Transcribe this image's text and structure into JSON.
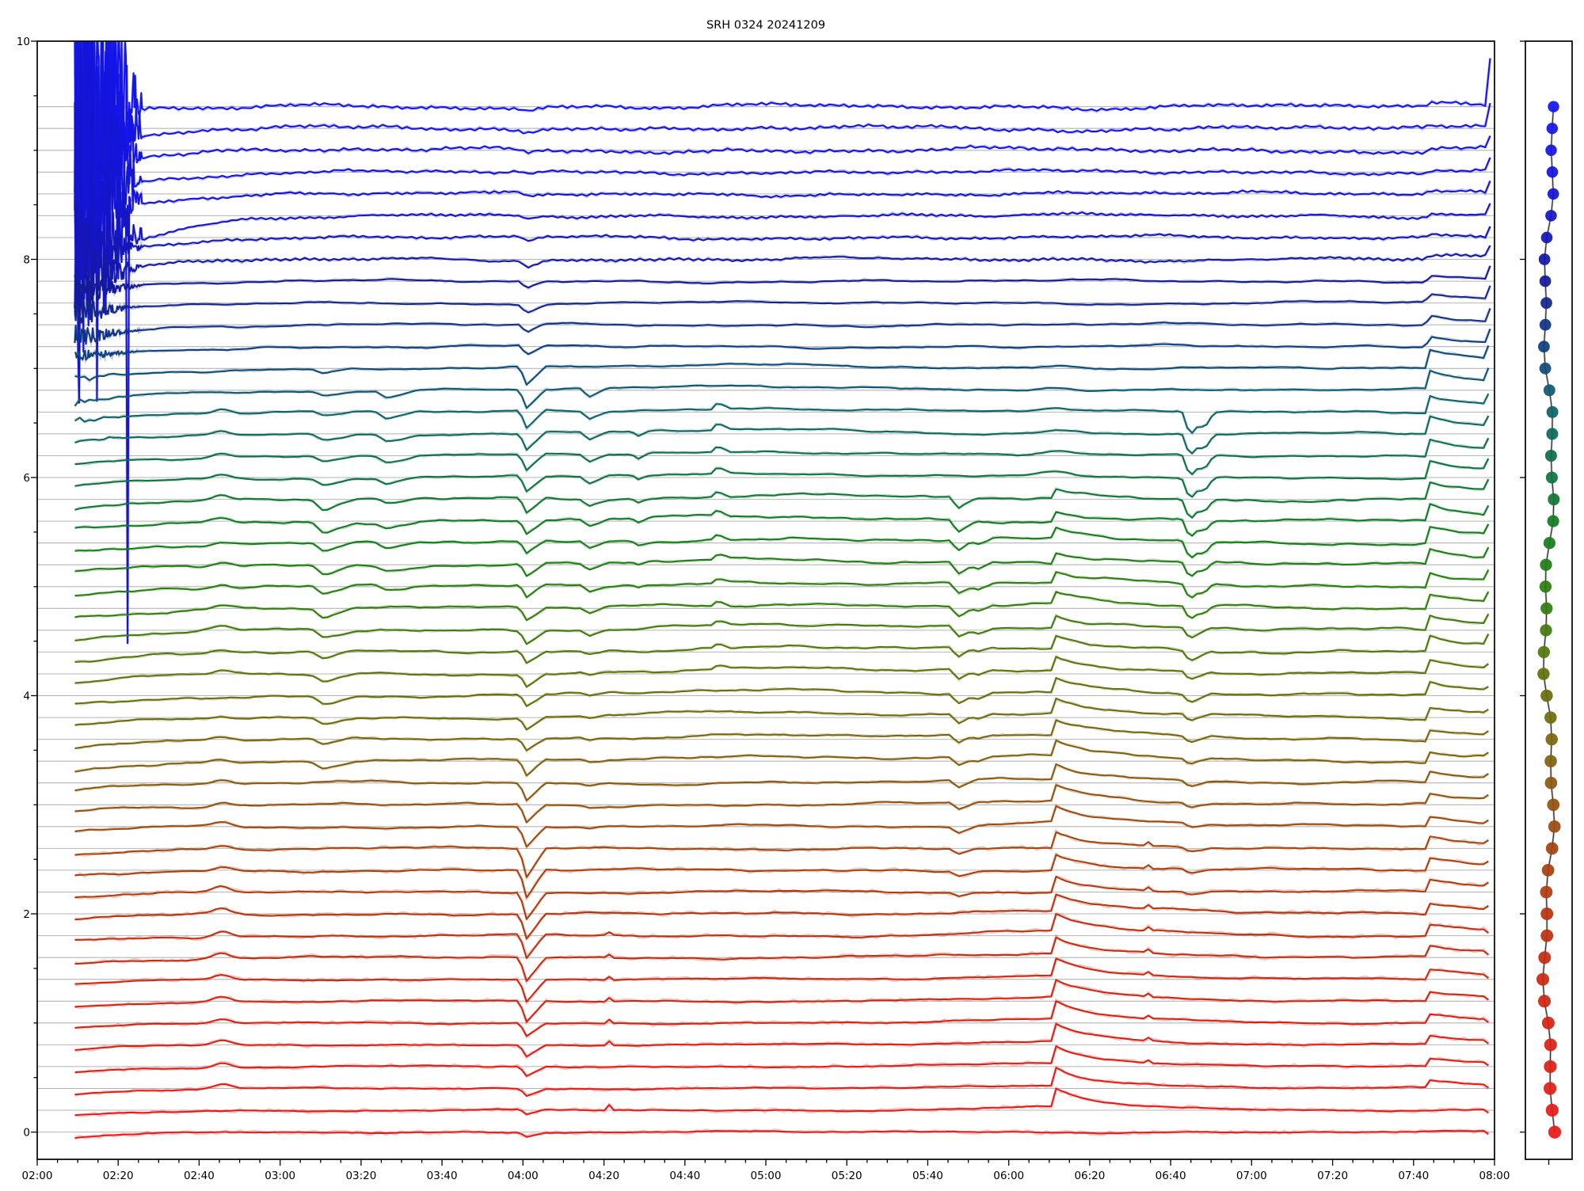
{
  "chart_data": {
    "type": "multitrace-line",
    "title": "SRH 0324 20241209",
    "x_axis": {
      "start": "02:00",
      "end": "08:00",
      "tick_labels": [
        "02:00",
        "02:20",
        "02:40",
        "03:00",
        "03:20",
        "03:40",
        "04:00",
        "04:20",
        "04:40",
        "05:00",
        "05:20",
        "05:40",
        "06:00",
        "06:20",
        "06:40",
        "07:00",
        "07:20",
        "07:40",
        "08:00"
      ],
      "major_tick_minutes": 20,
      "minor_tick_minutes": 5,
      "data_start": "02:09",
      "data_end": "07:59"
    },
    "y_axis": {
      "tick_labels": [
        "0",
        "2",
        "4",
        "6",
        "8",
        "10"
      ],
      "tick_values": [
        0,
        2,
        4,
        6,
        8,
        10
      ],
      "minor_step": 0.5,
      "lim": [
        -0.25,
        10
      ]
    },
    "traces": {
      "count": 48,
      "top_baseline": 9.4,
      "spacing": 0.2,
      "baselines": [
        9.4,
        9.2,
        9.0,
        8.8,
        8.6,
        8.4,
        8.2,
        8.0,
        7.8,
        7.6,
        7.4,
        7.2,
        7.0,
        6.8,
        6.6,
        6.4,
        6.2,
        6.0,
        5.8,
        5.6,
        5.4,
        5.2,
        5.0,
        4.8,
        4.6,
        4.4,
        4.2,
        4.0,
        3.8,
        3.6,
        3.4,
        3.2,
        3.0,
        2.8,
        2.6,
        2.4,
        2.2,
        2.0,
        1.8,
        1.6,
        1.4,
        1.2,
        1.0,
        0.8,
        0.6,
        0.4,
        0.2,
        0.0
      ],
      "t0": 0.155,
      "t1": 5.99
    },
    "color_stops": [
      [
        0.0,
        "#1414F0"
      ],
      [
        0.09,
        "#1414D2"
      ],
      [
        0.17,
        "#141996"
      ],
      [
        0.235,
        "#10407E"
      ],
      [
        0.3,
        "#0E6468"
      ],
      [
        0.36,
        "#0F7341"
      ],
      [
        0.42,
        "#147D1B"
      ],
      [
        0.48,
        "#2F7D0F"
      ],
      [
        0.55,
        "#5F730E"
      ],
      [
        0.63,
        "#7D640E"
      ],
      [
        0.7,
        "#9B4B10"
      ],
      [
        0.78,
        "#B43710"
      ],
      [
        0.86,
        "#CD2612"
      ],
      [
        1.0,
        "#E81A1A"
      ]
    ],
    "grid_color": "#b5b5b5",
    "spine_color": "#000000",
    "noise_amp": [
      [
        0,
        2,
        0.02
      ],
      [
        3,
        7,
        0.015
      ],
      [
        8,
        11,
        0.01
      ],
      [
        12,
        17,
        0.009
      ],
      [
        18,
        25,
        0.013
      ],
      [
        26,
        33,
        0.011
      ],
      [
        34,
        39,
        0.009
      ],
      [
        40,
        47,
        0.006
      ]
    ],
    "halo_amp": [
      [
        0,
        11,
        0.008
      ],
      [
        12,
        33,
        0.008
      ],
      [
        34,
        47,
        0.013
      ]
    ],
    "start_transient": {
      "tau": 0.3,
      "amps": [
        [
          0,
          2,
          0.1
        ],
        [
          3,
          4,
          0.22
        ],
        [
          5,
          5,
          0.52
        ],
        [
          6,
          7,
          0.16
        ],
        [
          8,
          13,
          0.1
        ],
        [
          14,
          30,
          0.08
        ],
        [
          31,
          47,
          0.05
        ]
      ]
    },
    "burst": {
      "t0": 0.155,
      "t1": 0.43,
      "levels": [
        [
          0,
          0,
          5.2
        ],
        [
          1,
          1,
          4.7
        ],
        [
          2,
          2,
          4.2
        ],
        [
          3,
          3,
          3.7
        ],
        [
          4,
          4,
          3.2
        ],
        [
          5,
          5,
          2.6
        ],
        [
          6,
          6,
          0.5
        ],
        [
          7,
          7,
          0.42
        ],
        [
          8,
          8,
          0.18
        ],
        [
          9,
          9,
          0.14
        ],
        [
          10,
          10,
          0.1
        ],
        [
          11,
          11,
          0.07
        ],
        [
          12,
          15,
          0.04
        ]
      ]
    },
    "down_spikes": [
      {
        "k": 0,
        "t": 0.21,
        "w": 0.005,
        "a": -1.6
      },
      {
        "k": 2,
        "t": 0.248,
        "w": 0.006,
        "a": -2.9
      },
      {
        "k": 4,
        "t": 0.372,
        "w": 0.006,
        "a": -4.0
      }
    ],
    "events": [
      {
        "name": "bump_0245",
        "shape": "gauss",
        "t": 0.76,
        "w": 0.05,
        "amps": [
          [
            14,
            26,
            0.04,
            0.03
          ],
          [
            28,
            35,
            0.02,
            0.04
          ],
          [
            36,
            45,
            0.055,
            0.04
          ]
        ]
      },
      {
        "name": "dip_0310",
        "shape": "tri",
        "t": 1.18,
        "w": 0.05,
        "amps": [
          [
            12,
            17,
            -0.04,
            -0.06
          ],
          [
            18,
            30,
            -0.1,
            -0.06
          ]
        ]
      },
      {
        "name": "step_0325",
        "shape": "tri",
        "t": 1.44,
        "w": 0.05,
        "amps": [
          [
            13,
            22,
            -0.07,
            -0.04
          ]
        ]
      },
      {
        "name": "dip_0400",
        "shape": "tri",
        "t": 2.015,
        "w": 0.03,
        "amps": [
          [
            0,
            5,
            -0.02,
            -0.03
          ],
          [
            6,
            11,
            -0.05,
            -0.09
          ],
          [
            12,
            19,
            -0.17,
            -0.13
          ],
          [
            20,
            29,
            -0.12,
            -0.11
          ],
          [
            30,
            33,
            -0.14,
            -0.18
          ],
          [
            34,
            41,
            -0.26,
            -0.19
          ],
          [
            42,
            45,
            -0.12,
            -0.07
          ],
          [
            46,
            47,
            -0.05,
            -0.04
          ]
        ]
      },
      {
        "name": "dip_0416",
        "shape": "tri",
        "t": 2.27,
        "w": 0.03,
        "amps": [
          [
            13,
            24,
            -0.08,
            -0.05
          ],
          [
            25,
            33,
            -0.03,
            -0.02
          ]
        ]
      },
      {
        "name": "spike_0421",
        "shape": "spikeup",
        "t": 2.35,
        "w": 0.01,
        "amps": [
          [
            38,
            43,
            0.05,
            0.08
          ],
          [
            46,
            46,
            0.1,
            0.1
          ]
        ]
      },
      {
        "name": "dip_0428",
        "shape": "tri",
        "t": 2.47,
        "w": 0.02,
        "amps": [
          [
            15,
            22,
            -0.05,
            -0.03
          ]
        ]
      },
      {
        "name": "peak_0448",
        "shape": "tri",
        "t": 2.8,
        "w": 0.022,
        "amps": [
          [
            14,
            26,
            0.06,
            0.04
          ]
        ]
      },
      {
        "name": "bump_mid",
        "shape": "gauss",
        "t": 3.05,
        "w": 0.7,
        "amps": [
          [
            12,
            30,
            0.035,
            0.05
          ]
        ]
      },
      {
        "name": "dip_0547",
        "shape": "tri",
        "t": 3.79,
        "w": 0.03,
        "amps": [
          [
            18,
            30,
            -0.11,
            -0.08
          ],
          [
            31,
            36,
            -0.07,
            -0.04
          ]
        ]
      },
      {
        "name": "dip_0552",
        "shape": "tri",
        "t": 3.87,
        "w": 0.025,
        "amps": [
          [
            20,
            30,
            -0.06,
            -0.04
          ]
        ]
      },
      {
        "name": "hump_0600",
        "shape": "gauss",
        "t": 4.3,
        "w": 0.5,
        "amps": [
          [
            20,
            33,
            0.03,
            0.045
          ],
          [
            37,
            46,
            0.045,
            0.03
          ]
        ]
      },
      {
        "name": "peak_0611",
        "shape": "peak_tail",
        "t": 4.185,
        "w": 0.12,
        "amps": [
          [
            18,
            25,
            0.05,
            0.07
          ],
          [
            26,
            46,
            0.08,
            0.1
          ]
        ]
      },
      {
        "name": "bump_0611g",
        "shape": "gauss",
        "t": 4.2,
        "w": 0.1,
        "amps": [
          [
            12,
            17,
            0.03,
            0.04
          ]
        ]
      },
      {
        "name": "peak_0634",
        "shape": "spikeup",
        "t": 4.57,
        "w": 0.015,
        "amps": [
          [
            34,
            44,
            0.05,
            0.04
          ]
        ]
      },
      {
        "name": "dip_0645",
        "shape": "tri",
        "t": 4.745,
        "w": 0.032,
        "amps": [
          [
            14,
            23,
            -0.22,
            -0.14
          ],
          [
            24,
            30,
            -0.1,
            -0.06
          ],
          [
            31,
            36,
            -0.05,
            -0.03
          ]
        ]
      },
      {
        "name": "dip_0649",
        "shape": "tri",
        "t": 4.805,
        "w": 0.02,
        "amps": [
          [
            14,
            23,
            -0.1,
            -0.05
          ]
        ]
      },
      {
        "name": "rise_0743",
        "shape": "plateau",
        "t": 5.715,
        "w": 0.02,
        "amps": [
          [
            0,
            7,
            0.015,
            0.02
          ],
          [
            8,
            11,
            0.04,
            0.06
          ],
          [
            12,
            25,
            0.1,
            0.08
          ],
          [
            26,
            33,
            0.07,
            0.05
          ]
        ]
      },
      {
        "name": "bump_0743r",
        "shape": "peak_tail",
        "t": 5.715,
        "w": 0.3,
        "amps": [
          [
            34,
            45,
            0.07,
            0.04
          ]
        ]
      }
    ],
    "end_spike": {
      "t": 5.962,
      "amps": [
        [
          0,
          0,
          0.42
        ],
        [
          1,
          1,
          0.2
        ],
        [
          2,
          7,
          0.1
        ],
        [
          8,
          13,
          0.12
        ],
        [
          14,
          25,
          0.09
        ],
        [
          26,
          37,
          0.03
        ],
        [
          38,
          47,
          -0.03
        ]
      ]
    },
    "side_panel": {
      "dot_radius": 7.2,
      "n_dots": 48,
      "dot_values_follow": "traces.baselines",
      "line_colors": [
        "#9a9a9a",
        "#2b2b2b"
      ],
      "x_tick_count": 1
    }
  }
}
